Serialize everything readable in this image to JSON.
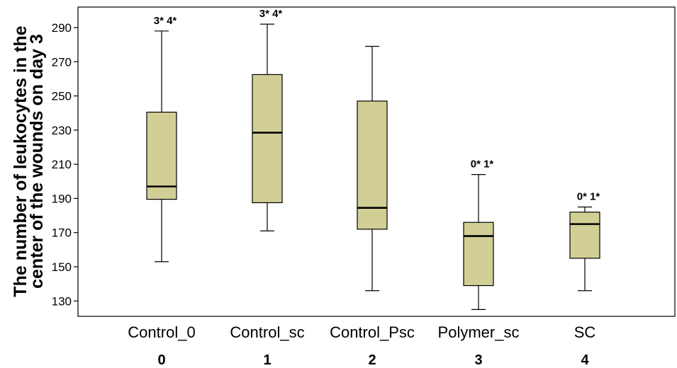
{
  "chart_data": {
    "type": "box",
    "ylabel_lines": [
      "The number of leukocytes in the",
      "center of the wounds on day 3"
    ],
    "ylim": [
      121,
      302
    ],
    "yticks": [
      130,
      150,
      170,
      190,
      210,
      230,
      250,
      270,
      290
    ],
    "box_fill": "#d1cf96",
    "categories": [
      "Control_0",
      "Control_sc",
      "Control_Psc",
      "Polymer_sc",
      "SC"
    ],
    "group_numbers": [
      "0",
      "1",
      "2",
      "3",
      "4"
    ],
    "boxes": [
      {
        "min": 153,
        "q1": 189.5,
        "median": 197,
        "q3": 240.5,
        "max": 288,
        "annotation": "3*  4*"
      },
      {
        "min": 171,
        "q1": 187.5,
        "median": 228.5,
        "q3": 262.5,
        "max": 292,
        "annotation": "3*  4*"
      },
      {
        "min": 136,
        "q1": 172,
        "median": 184.5,
        "q3": 247,
        "max": 279,
        "annotation": ""
      },
      {
        "min": 125,
        "q1": 139,
        "median": 168,
        "q3": 176,
        "max": 204,
        "annotation": "0*  1*"
      },
      {
        "min": 136,
        "q1": 155,
        "median": 175,
        "q3": 182,
        "max": 185,
        "annotation": "0* 1*"
      }
    ]
  }
}
